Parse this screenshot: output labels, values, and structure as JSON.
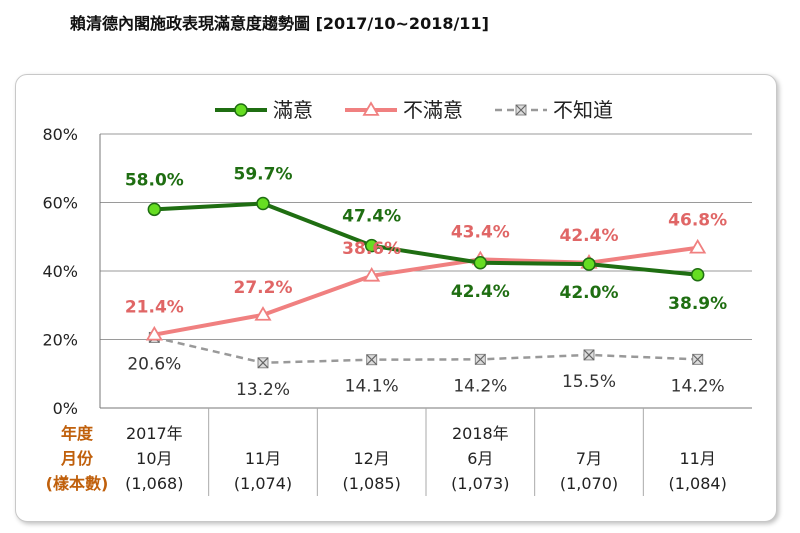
{
  "title": "賴清德內閣施政表現滿意度趨勢圖  [2017/10~2018/11]",
  "side_labels": [
    "年度",
    "月份",
    "(樣本數)"
  ],
  "chart_data": {
    "type": "line",
    "title": "賴清德內閣施政表現滿意度趨勢圖  [2017/10~2018/11]",
    "categories": [
      [
        "2017年",
        "10月",
        "(1,068)"
      ],
      [
        "",
        "11月",
        "(1,074)"
      ],
      [
        "",
        "12月",
        "(1,085)"
      ],
      [
        "2018年",
        "6月",
        "(1,073)"
      ],
      [
        "",
        "7月",
        "(1,070)"
      ],
      [
        "",
        "11月",
        "(1,084)"
      ]
    ],
    "yticks": [
      "0%",
      "20%",
      "40%",
      "60%",
      "80%"
    ],
    "ylim": [
      0,
      80
    ],
    "grid": true,
    "legend_position": "top-center",
    "series": [
      {
        "name": "滿意",
        "values": [
          58.0,
          59.7,
          47.4,
          42.4,
          42.0,
          38.9
        ],
        "labels": [
          "58.0%",
          "59.7%",
          "47.4%",
          "42.4%",
          "42.0%",
          "38.9%"
        ],
        "color": "#1f6e12",
        "marker": "circle",
        "style": "solid"
      },
      {
        "name": "不滿意",
        "values": [
          21.4,
          27.2,
          38.6,
          43.4,
          42.4,
          46.8
        ],
        "labels": [
          "21.4%",
          "27.2%",
          "38.6%",
          "43.4%",
          "42.4%",
          "46.8%"
        ],
        "color": "#f08080",
        "marker": "triangle",
        "style": "solid"
      },
      {
        "name": "不知道",
        "values": [
          20.6,
          13.2,
          14.1,
          14.2,
          15.5,
          14.2
        ],
        "labels": [
          "20.6%",
          "13.2%",
          "14.1%",
          "14.2%",
          "15.5%",
          "14.2%"
        ],
        "color": "#999999",
        "marker": "x-square",
        "style": "dashed"
      }
    ]
  }
}
